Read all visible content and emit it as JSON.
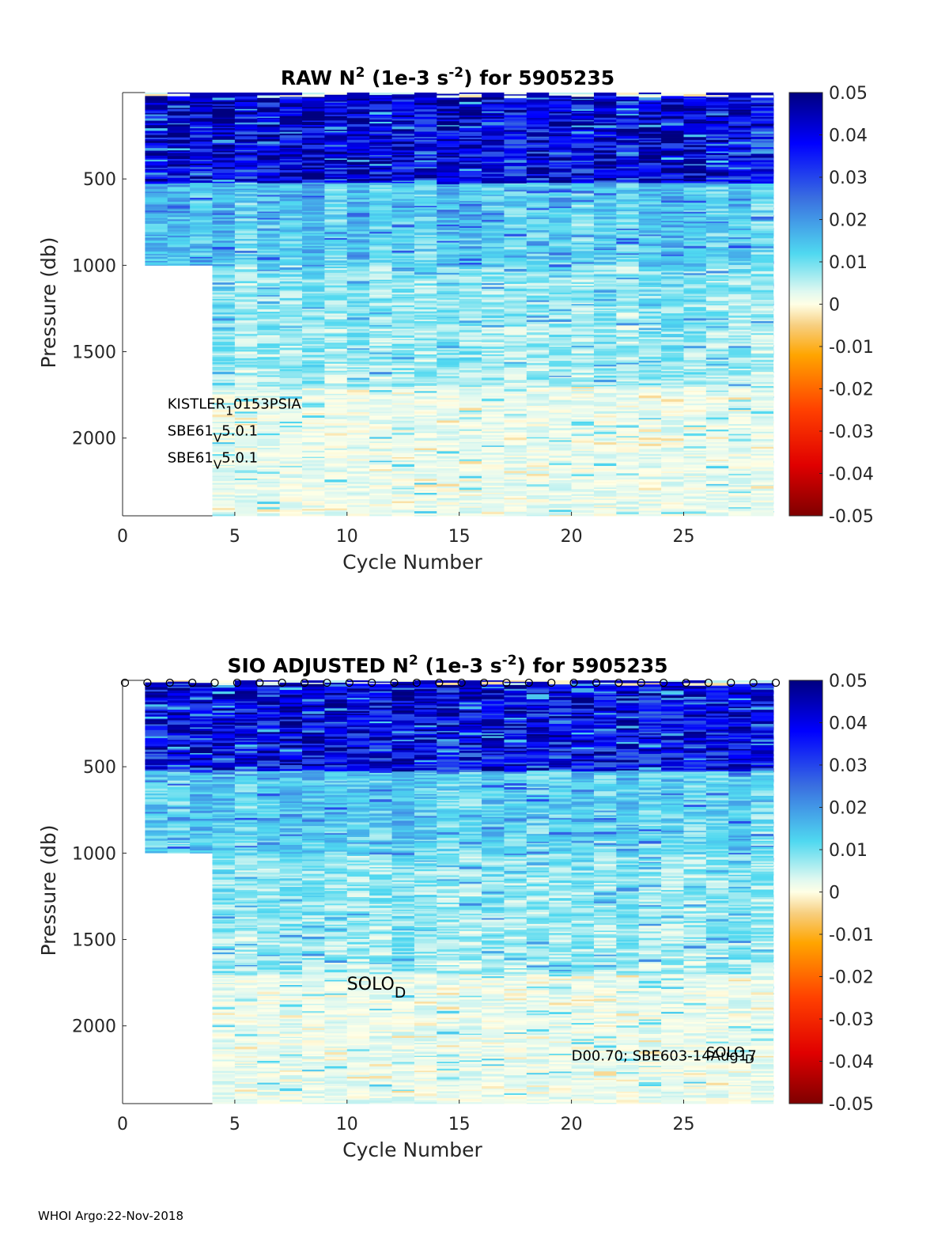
{
  "footer": "WHOI Argo:22-Nov-2018",
  "chart_data": [
    {
      "type": "heatmap",
      "title_parts": [
        "RAW N",
        "2",
        " (1e-3 s",
        "-2",
        ") for 5905235"
      ],
      "xlabel": "Cycle Number",
      "ylabel": "Pressure (db)",
      "xlim": [
        0,
        29
      ],
      "ylim": [
        2450,
        0
      ],
      "x_ticks": [
        0,
        5,
        10,
        15,
        20,
        25
      ],
      "y_ticks": [
        500,
        1000,
        1500,
        2000
      ],
      "cycles_start": 1,
      "cycles_end": 29,
      "short_profile_cycles": [
        1,
        2,
        3
      ],
      "short_profile_max_pressure": 1000,
      "full_profile_max_pressure": 2450,
      "strong_layer_bottom_pressure": 520,
      "colorbar": {
        "min": -0.05,
        "max": 0.05,
        "ticks": [
          "0.05",
          "0.04",
          "0.03",
          "0.02",
          "0.01",
          "0",
          "-0.01",
          "-0.02",
          "-0.03",
          "-0.04",
          "-0.05"
        ]
      },
      "annotations": [
        {
          "base": "KISTLER",
          "sub": "1",
          "rest": "0153PSIA",
          "cycle": 2,
          "pressure": 1830
        },
        {
          "base": "SBE61",
          "sub": "V",
          "rest": "5.0.1",
          "cycle": 2,
          "pressure": 1985
        },
        {
          "base": "SBE61",
          "sub": "V",
          "rest": "5.0.1",
          "cycle": 2,
          "pressure": 2140
        }
      ],
      "profile_markers": false,
      "seed": 12345
    },
    {
      "type": "heatmap",
      "title_parts": [
        "SIO  ADJUSTED N",
        "2",
        " (1e-3 s",
        "-2",
        ") for 5905235"
      ],
      "xlabel": "Cycle Number",
      "ylabel": "Pressure (db)",
      "xlim": [
        0,
        29
      ],
      "ylim": [
        2450,
        0
      ],
      "x_ticks": [
        0,
        5,
        10,
        15,
        20,
        25
      ],
      "y_ticks": [
        500,
        1000,
        1500,
        2000
      ],
      "cycles_start": 1,
      "cycles_end": 29,
      "short_profile_cycles": [
        1,
        2,
        3
      ],
      "short_profile_max_pressure": 1000,
      "full_profile_max_pressure": 2450,
      "strong_layer_bottom_pressure": 520,
      "colorbar": {
        "min": -0.05,
        "max": 0.05,
        "ticks": [
          "0.05",
          "0.04",
          "0.03",
          "0.02",
          "0.01",
          "0",
          "-0.01",
          "-0.02",
          "-0.03",
          "-0.04",
          "-0.05"
        ]
      },
      "annotations": [
        {
          "base": "SOLO",
          "sub": "D",
          "rest": "",
          "cycle": 10,
          "pressure": 1790,
          "large": true
        },
        {
          "base": "D00.70; SBE603-14Aug17",
          "sub": "",
          "rest": "",
          "cycle": 20,
          "pressure": 2200
        },
        {
          "base": "SOLO",
          "sub": "D",
          "rest": "",
          "cycle": 26,
          "pressure": 2180
        }
      ],
      "profile_markers": true,
      "marker_cycles": [
        0,
        1,
        2,
        3,
        4,
        5,
        6,
        7,
        8,
        9,
        10,
        11,
        12,
        13,
        14,
        15,
        16,
        17,
        18,
        19,
        20,
        21,
        22,
        23,
        24,
        25,
        26,
        27,
        28,
        29
      ],
      "seed": 67890
    }
  ]
}
